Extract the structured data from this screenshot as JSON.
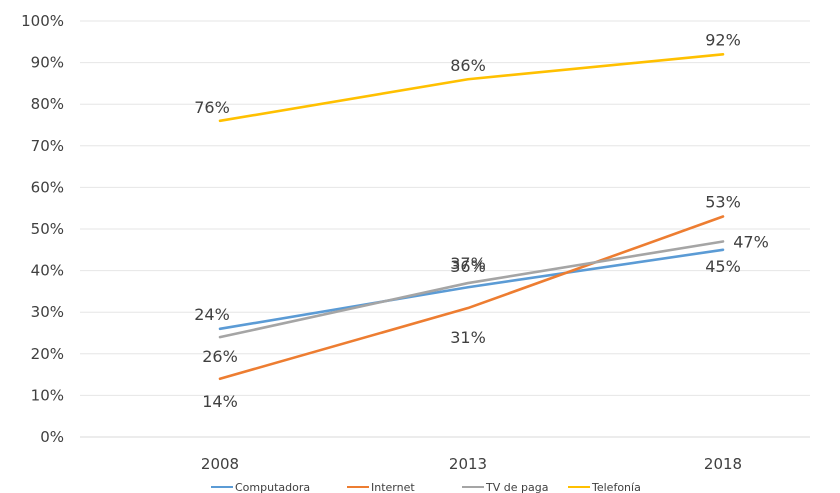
{
  "chart_data": {
    "type": "line",
    "categories": [
      "2008",
      "2013",
      "2018"
    ],
    "y_ticks": [
      "0%",
      "10%",
      "20%",
      "30%",
      "40%",
      "50%",
      "60%",
      "70%",
      "80%",
      "90%",
      "100%"
    ],
    "ylim": [
      0,
      100
    ],
    "grid": true,
    "legend_position": "bottom",
    "series": [
      {
        "name": "Computadora",
        "color": "#5B9BD5",
        "values": [
          26,
          36,
          45
        ],
        "labels": [
          "26%",
          "36%",
          "45%"
        ]
      },
      {
        "name": "Internet",
        "color": "#ED7D31",
        "values": [
          14,
          31,
          53
        ],
        "labels": [
          "14%",
          "31%",
          "53%"
        ]
      },
      {
        "name": "TV de paga",
        "color": "#A5A5A5",
        "values": [
          24,
          37,
          47
        ],
        "labels": [
          "24%",
          "37%",
          "47%"
        ]
      },
      {
        "name": "Telefonía",
        "color": "#FFC000",
        "values": [
          76,
          86,
          92
        ],
        "labels": [
          "76%",
          "86%",
          "92%"
        ]
      }
    ]
  }
}
